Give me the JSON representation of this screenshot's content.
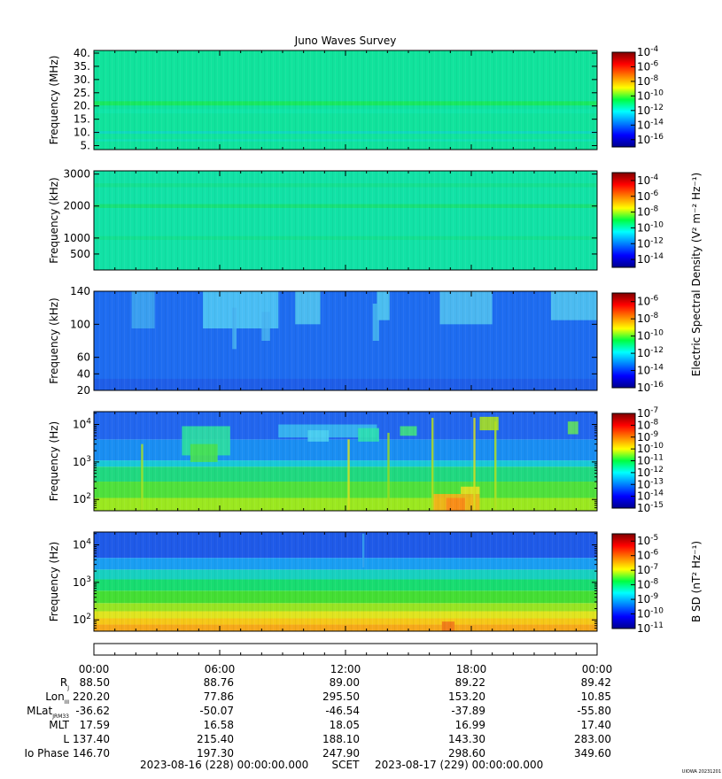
{
  "chart_data": [
    {
      "type": "heatmap",
      "title": "Juno Waves Survey",
      "ylabel": "Frequency (MHz)",
      "yscale": "linear",
      "ylim": [
        3.5,
        41
      ],
      "yticks": [
        "40.",
        "35.",
        "30.",
        "25.",
        "20.",
        "15.",
        "10.",
        "5."
      ],
      "ytick_values": [
        40,
        35,
        30,
        25,
        20,
        15,
        10,
        5
      ],
      "colorbar": {
        "exponents": [
          "-4",
          "-6",
          "-8",
          "-10",
          "-12",
          "-14",
          "-16"
        ],
        "exp_values": [
          -4,
          -6,
          -8,
          -10,
          -12,
          -14,
          -16
        ],
        "range": [
          -17,
          -4
        ]
      },
      "background": "#11e39c",
      "features": [
        {
          "kind": "band",
          "y_center": 21,
          "y_halfwidth": 0.8,
          "color": "#18e860"
        },
        {
          "kind": "band",
          "y_center": 18,
          "y_halfwidth": 0.8,
          "color": "#10e6a8"
        },
        {
          "kind": "band",
          "y_center": 10,
          "y_halfwidth": 0.5,
          "color": "#10d8c0"
        },
        {
          "kind": "band",
          "y_center": 7,
          "y_halfwidth": 0.4,
          "color": "#10e0b8"
        }
      ]
    },
    {
      "type": "heatmap",
      "ylabel": "Frequency (kHz)",
      "yscale": "linear",
      "ylim": [
        0,
        3100
      ],
      "yticks": [
        "3000",
        "2000",
        "1000",
        "500"
      ],
      "ytick_values": [
        3000,
        2000,
        1000,
        500
      ],
      "colorbar": {
        "label": "Electric Spectral Density (V² m⁻² Hz⁻¹)",
        "exponents": [
          "-4",
          "-6",
          "-8",
          "-10",
          "-12",
          "-14"
        ],
        "exp_values": [
          -4,
          -6,
          -8,
          -10,
          -12,
          -14
        ],
        "range": [
          -15,
          -3
        ]
      },
      "background": "#12e2a6",
      "features": [
        {
          "kind": "band",
          "y_center": 2000,
          "y_halfwidth": 60,
          "color": "#18e078"
        },
        {
          "kind": "band",
          "y_center": 2650,
          "y_halfwidth": 60,
          "color": "#14e090"
        },
        {
          "kind": "band",
          "y_center": 1000,
          "y_halfwidth": 60,
          "color": "#14e090"
        }
      ]
    },
    {
      "type": "heatmap",
      "ylabel": "Frequency (kHz)",
      "yscale": "linear",
      "ylim": [
        20,
        140
      ],
      "yticks": [
        "140",
        "100",
        "60",
        "40",
        "20"
      ],
      "ytick_values": [
        140,
        100,
        60,
        40,
        20
      ],
      "colorbar": {
        "exponents": [
          "-6",
          "-8",
          "-10",
          "-12",
          "-14",
          "-16"
        ],
        "exp_values": [
          -6,
          -8,
          -10,
          -12,
          -14,
          -16
        ],
        "range": [
          -16,
          -5
        ]
      },
      "background": "#1e6cf0",
      "features": [
        {
          "kind": "band",
          "y_center": 27,
          "y_halfwidth": 7,
          "color": "#1f5ee8"
        },
        {
          "kind": "burst",
          "t0": 5.2,
          "t1": 8.8,
          "y0": 95,
          "y1": 140,
          "color": "#4fc8f4"
        },
        {
          "kind": "burst",
          "t0": 9.6,
          "t1": 10.8,
          "y0": 100,
          "y1": 140,
          "color": "#50c4f0"
        },
        {
          "kind": "burst",
          "t0": 13.5,
          "t1": 14.1,
          "y0": 105,
          "y1": 140,
          "color": "#50c8f0"
        },
        {
          "kind": "burst",
          "t0": 16.5,
          "t1": 19.0,
          "y0": 100,
          "y1": 140,
          "color": "#50c0f0"
        },
        {
          "kind": "burst",
          "t0": 21.8,
          "t1": 24,
          "y0": 105,
          "y1": 140,
          "color": "#50c4f0"
        },
        {
          "kind": "spike",
          "t0": 1.8,
          "t1": 2.9,
          "y0": 95,
          "y1": 140,
          "color": "#40a8f0"
        },
        {
          "kind": "spike",
          "t0": 6.6,
          "t1": 6.8,
          "y0": 70,
          "y1": 120,
          "color": "#48b4f0"
        },
        {
          "kind": "spike",
          "t0": 8.0,
          "t1": 8.4,
          "y0": 80,
          "y1": 115,
          "color": "#48b4f0"
        },
        {
          "kind": "spike",
          "t0": 13.3,
          "t1": 13.6,
          "y0": 80,
          "y1": 125,
          "color": "#48b8f0"
        }
      ]
    },
    {
      "type": "heatmap",
      "ylabel": "Frequency (Hz)",
      "yscale": "log",
      "ylim": [
        50,
        22000
      ],
      "yticks": [
        "10^4",
        "10^3",
        "10^2"
      ],
      "ytick_values": [
        10000,
        1000,
        100
      ],
      "colorbar": {
        "exponents": [
          "-7",
          "-8",
          "-9",
          "-10",
          "-11",
          "-12",
          "-13",
          "-14",
          "-15"
        ],
        "exp_values": [
          -7,
          -8,
          -9,
          -10,
          -11,
          -12,
          -13,
          -14,
          -15
        ],
        "range": [
          -15,
          -7
        ]
      },
      "layers": [
        {
          "y0": 50,
          "y1": 110,
          "color": "#9be820"
        },
        {
          "y0": 110,
          "y1": 300,
          "color": "#4fe03c"
        },
        {
          "y0": 300,
          "y1": 750,
          "color": "#20d880"
        },
        {
          "y0": 750,
          "y1": 1100,
          "color": "#18c8d8"
        },
        {
          "y0": 1100,
          "y1": 4000,
          "color": "#1a8ef2"
        },
        {
          "y0": 4000,
          "y1": 22000,
          "color": "#2266ee"
        }
      ],
      "features": [
        {
          "kind": "burst",
          "t0": 4.2,
          "t1": 6.5,
          "y0": 1500,
          "y1": 9000,
          "color": "#2ee0a0"
        },
        {
          "kind": "burst",
          "t0": 4.6,
          "t1": 5.9,
          "y0": 1000,
          "y1": 3000,
          "color": "#48e050"
        },
        {
          "kind": "burst",
          "t0": 8.8,
          "t1": 13.5,
          "y0": 4500,
          "y1": 10000,
          "color": "#38b8f0"
        },
        {
          "kind": "burst",
          "t0": 10.2,
          "t1": 11.2,
          "y0": 3500,
          "y1": 7000,
          "color": "#4cd0f0"
        },
        {
          "kind": "burst",
          "t0": 12.6,
          "t1": 13.6,
          "y0": 3500,
          "y1": 8000,
          "color": "#2ee0b0"
        },
        {
          "kind": "burst",
          "t0": 14.6,
          "t1": 15.4,
          "y0": 5000,
          "y1": 9000,
          "color": "#40e080"
        },
        {
          "kind": "burst",
          "t0": 16.2,
          "t1": 18.4,
          "y0": 50,
          "y1": 140,
          "color": "#f6b018"
        },
        {
          "kind": "burst",
          "t0": 16.8,
          "t1": 17.7,
          "y0": 50,
          "y1": 110,
          "color": "#f88818"
        },
        {
          "kind": "burst",
          "t0": 17.5,
          "t1": 18.4,
          "y0": 140,
          "y1": 220,
          "color": "#e8e020"
        },
        {
          "kind": "burst",
          "t0": 18.4,
          "t1": 19.3,
          "y0": 7000,
          "y1": 16000,
          "color": "#a8e020"
        },
        {
          "kind": "burst",
          "t0": 22.6,
          "t1": 23.1,
          "y0": 5500,
          "y1": 12000,
          "color": "#60e060"
        },
        {
          "kind": "spike",
          "t0": 2.25,
          "t1": 2.35,
          "y0": 50,
          "y1": 3000,
          "color": "#a8e020"
        },
        {
          "kind": "spike",
          "t0": 12.1,
          "t1": 12.2,
          "y0": 50,
          "y1": 4000,
          "color": "#d8e020"
        },
        {
          "kind": "spike",
          "t0": 14.0,
          "t1": 14.1,
          "y0": 50,
          "y1": 6000,
          "color": "#a0e020"
        },
        {
          "kind": "spike",
          "t0": 16.1,
          "t1": 16.2,
          "y0": 50,
          "y1": 15000,
          "color": "#b8e020"
        },
        {
          "kind": "spike",
          "t0": 18.1,
          "t1": 18.2,
          "y0": 50,
          "y1": 15000,
          "color": "#d8e020"
        },
        {
          "kind": "spike",
          "t0": 19.1,
          "t1": 19.2,
          "y0": 50,
          "y1": 12000,
          "color": "#b0e020"
        }
      ]
    },
    {
      "type": "heatmap",
      "ylabel": "Frequency (Hz)",
      "yscale": "log",
      "ylim": [
        50,
        22000
      ],
      "yticks": [
        "10^4",
        "10^3",
        "10^2"
      ],
      "ytick_values": [
        10000,
        1000,
        100
      ],
      "colorbar": {
        "label": "B SD (nT² Hz⁻¹)",
        "exponents": [
          "-5",
          "-6",
          "-7",
          "-8",
          "-9",
          "-10",
          "-11"
        ],
        "exp_values": [
          -5,
          -6,
          -7,
          -8,
          -9,
          -10,
          -11
        ],
        "range": [
          -11,
          -4.5
        ]
      },
      "layers": [
        {
          "y0": 50,
          "y1": 75,
          "color": "#f6a81a"
        },
        {
          "y0": 75,
          "y1": 110,
          "color": "#f6c818"
        },
        {
          "y0": 110,
          "y1": 170,
          "color": "#e0e420"
        },
        {
          "y0": 170,
          "y1": 280,
          "color": "#98e424"
        },
        {
          "y0": 280,
          "y1": 600,
          "color": "#44de34"
        },
        {
          "y0": 600,
          "y1": 1200,
          "color": "#18dc70"
        },
        {
          "y0": 1200,
          "y1": 2200,
          "color": "#18d0c0"
        },
        {
          "y0": 2200,
          "y1": 4500,
          "color": "#1a9ef2"
        },
        {
          "y0": 4500,
          "y1": 22000,
          "color": "#1f5ae8"
        }
      ],
      "features": [
        {
          "kind": "burst",
          "t0": 16.6,
          "t1": 17.2,
          "y0": 50,
          "y1": 90,
          "color": "#f07818"
        },
        {
          "kind": "spike",
          "t0": 12.8,
          "t1": 12.9,
          "y0": 2500,
          "y1": 20000,
          "color": "#3aa8f0"
        }
      ]
    }
  ],
  "xaxis": {
    "ticks": [
      "00:00",
      "06:00",
      "12:00",
      "18:00",
      "00:00"
    ],
    "tick_hours": [
      0,
      6,
      12,
      18,
      24
    ],
    "range_hours": [
      0,
      24
    ]
  },
  "ephemeris": [
    {
      "label": "R",
      "sub": "J",
      "values": [
        "88.50",
        "88.76",
        "89.00",
        "89.22",
        "89.42"
      ]
    },
    {
      "label": "Lon",
      "sub": "III",
      "values": [
        "220.20",
        "77.86",
        "295.50",
        "153.20",
        "10.85"
      ]
    },
    {
      "label": "MLat",
      "sub": "JRM33",
      "values": [
        "-36.62",
        "-50.07",
        "-46.54",
        "-37.89",
        "-55.80"
      ]
    },
    {
      "label": "MLT",
      "sub": "",
      "values": [
        "17.59",
        "16.58",
        "18.05",
        "16.99",
        "17.40"
      ]
    },
    {
      "label": "L",
      "sub": "",
      "values": [
        "137.40",
        "215.40",
        "188.10",
        "143.30",
        "283.00"
      ]
    },
    {
      "label": "Io Phase",
      "sub": "",
      "values": [
        "146.70",
        "197.30",
        "247.90",
        "298.60",
        "349.60"
      ]
    }
  ],
  "footer": {
    "start": "2023-08-16 (228) 00:00:00.000",
    "scet": "SCET",
    "end": "2023-08-17 (229) 00:00:00.000"
  },
  "watermark": "UIOWA 20231201"
}
